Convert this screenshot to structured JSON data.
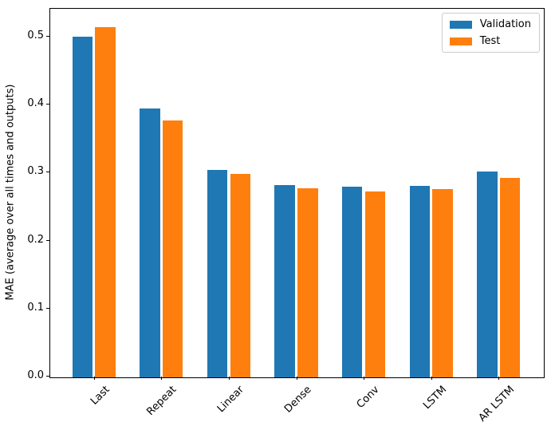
{
  "figure": {
    "background": "#ffffff",
    "axis_color": "#000000"
  },
  "chart_data": {
    "type": "bar",
    "title": "",
    "xlabel": "",
    "ylabel": "MAE (average over all times and outputs)",
    "categories": [
      "Last",
      "Repeat",
      "Linear",
      "Dense",
      "Conv",
      "LSTM",
      "AR LSTM"
    ],
    "series": [
      {
        "name": "Validation",
        "color": "#1f77b4",
        "values": [
          0.501,
          0.396,
          0.305,
          0.283,
          0.28,
          0.282,
          0.303
        ]
      },
      {
        "name": "Test",
        "color": "#ff7f0e",
        "values": [
          0.515,
          0.378,
          0.299,
          0.278,
          0.273,
          0.277,
          0.293
        ]
      }
    ],
    "ylim": [
      0,
      0.54
    ],
    "ytick_values": [
      0.0,
      0.1,
      0.2,
      0.3,
      0.4,
      0.5
    ],
    "ytick_labels": [
      "0.0",
      "0.1",
      "0.2",
      "0.3",
      "0.4",
      "0.5"
    ],
    "xlim": [
      -0.645,
      6.645
    ],
    "bar_width": 0.3,
    "bar_offset": 0.17,
    "xtick_rotation": 45,
    "grid": false,
    "legend": {
      "position": "upper right"
    }
  }
}
